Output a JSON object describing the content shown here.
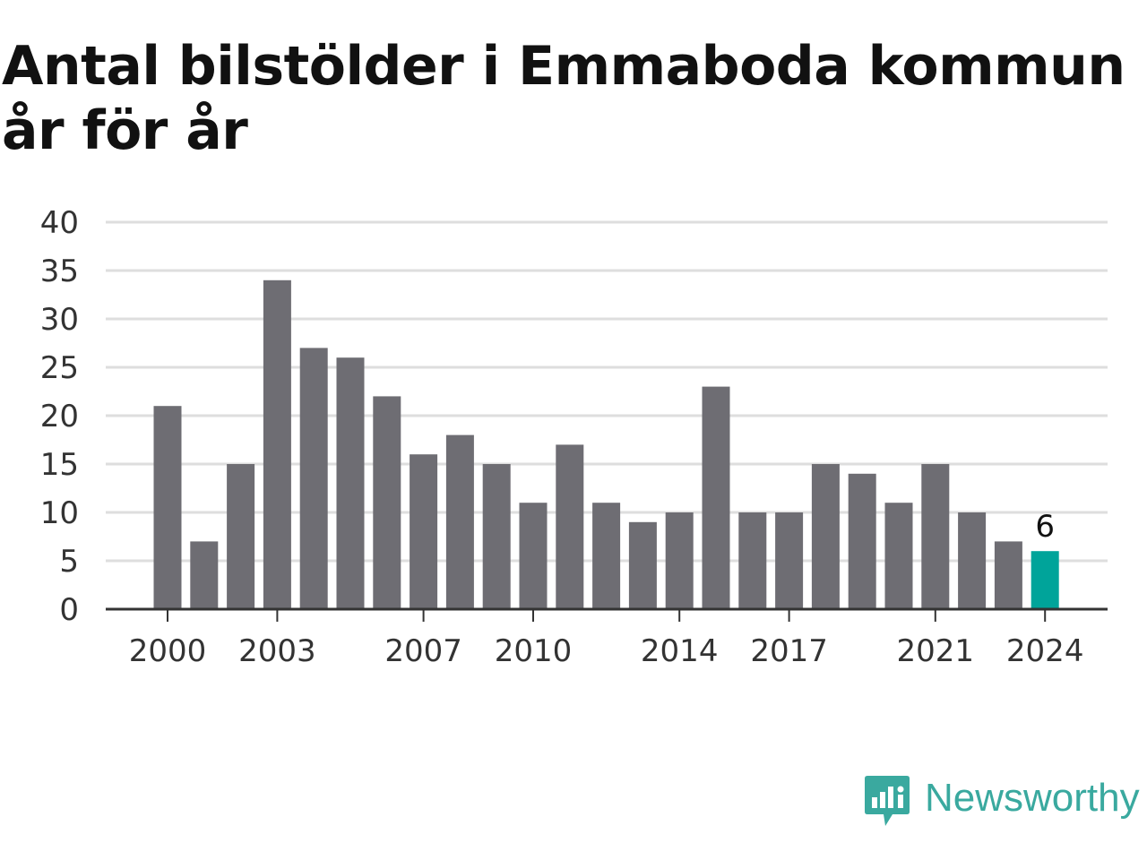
{
  "title_line1": "Antal bilstölder i Emmaboda kommun",
  "title_line2": "år för år",
  "brand": {
    "name": "Newsworthy",
    "icon": "newsworthy-logo-icon",
    "color": "#3aa99f"
  },
  "colors": {
    "bar": "#6e6d73",
    "highlight": "#00a49a",
    "grid": "#dedede",
    "axis": "#333333",
    "text": "#333333"
  },
  "chart_data": {
    "type": "bar",
    "title": "Antal bilstölder i Emmaboda kommun år för år",
    "categories": [
      "2000",
      "2001",
      "2002",
      "2003",
      "2004",
      "2005",
      "2006",
      "2007",
      "2008",
      "2009",
      "2010",
      "2011",
      "2012",
      "2013",
      "2014",
      "2015",
      "2016",
      "2017",
      "2018",
      "2019",
      "2020",
      "2021",
      "2022",
      "2023",
      "2024"
    ],
    "values": [
      21,
      7,
      15,
      34,
      27,
      26,
      22,
      16,
      18,
      15,
      11,
      17,
      11,
      9,
      10,
      23,
      10,
      10,
      15,
      14,
      11,
      15,
      10,
      7,
      6
    ],
    "xticks": [
      "2000",
      "2003",
      "2007",
      "2010",
      "2014",
      "2017",
      "2021",
      "2024"
    ],
    "yticks": [
      0,
      5,
      10,
      15,
      20,
      25,
      30,
      35,
      40
    ],
    "ylim": [
      0,
      40
    ],
    "highlight_category": "2024",
    "data_labels": [
      {
        "category": "2024",
        "text": "6"
      }
    ],
    "grid": true,
    "xlabel": "",
    "ylabel": ""
  }
}
